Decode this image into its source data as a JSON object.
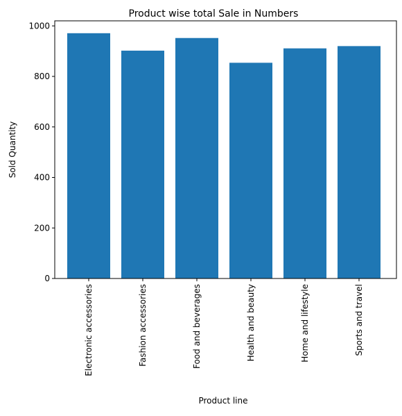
{
  "chart_data": {
    "type": "bar",
    "title": "Product wise total Sale in Numbers",
    "xlabel": "Product line",
    "ylabel": "Sold Quantity",
    "categories": [
      "Electronic accessories",
      "Fashion accessories",
      "Food and beverages",
      "Health and beauty",
      "Home and lifestyle",
      "Sports and travel"
    ],
    "values": [
      971,
      902,
      952,
      854,
      911,
      920
    ],
    "ylim": [
      0,
      1020
    ],
    "yticks": [
      0,
      200,
      400,
      600,
      800,
      1000
    ],
    "grid": false,
    "bar_color": "#1f77b4"
  }
}
